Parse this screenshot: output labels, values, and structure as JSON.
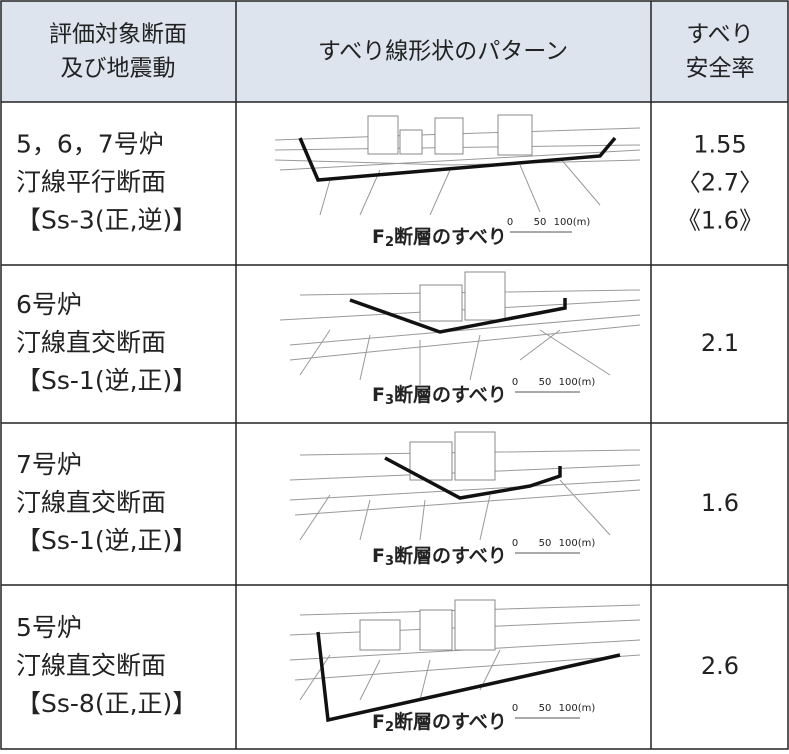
{
  "table": {
    "header": [
      [
        "評価対象断面",
        "及び地震動"
      ],
      [
        "すべり線形状のパターン"
      ],
      [
        "すべり",
        "安全率"
      ]
    ],
    "rows": [
      {
        "label": [
          "5，6，7号炉",
          "汀線平行断面",
          "【Ss-3(正,逆)】"
        ],
        "caption": {
          "main": "F",
          "sub": "2",
          "rest": "断層のすべり"
        },
        "scale": [
          "0",
          "50",
          "100(m)"
        ],
        "safety": [
          "1.55",
          "〈2.7〉",
          "《1.6》"
        ]
      },
      {
        "label": [
          "6号炉",
          "汀線直交断面",
          "【Ss-1(逆,正)】"
        ],
        "caption": {
          "main": "F",
          "sub": "3",
          "rest": "断層のすべり"
        },
        "scale": [
          "0",
          "50",
          "100(m)"
        ],
        "safety": [
          "2.1"
        ]
      },
      {
        "label": [
          "7号炉",
          "汀線直交断面",
          "【Ss-1(逆,正)】"
        ],
        "caption": {
          "main": "F",
          "sub": "3",
          "rest": "断層のすべり"
        },
        "scale": [
          "0",
          "50",
          "100(m)"
        ],
        "safety": [
          "1.6"
        ]
      },
      {
        "label": [
          "5号炉",
          "汀線直交断面",
          "【Ss-8(正,正)】"
        ],
        "caption": {
          "main": "F",
          "sub": "2",
          "rest": "断層のすべり"
        },
        "scale": [
          "0",
          "50",
          "100(m)"
        ],
        "safety": [
          "2.6"
        ]
      }
    ]
  }
}
